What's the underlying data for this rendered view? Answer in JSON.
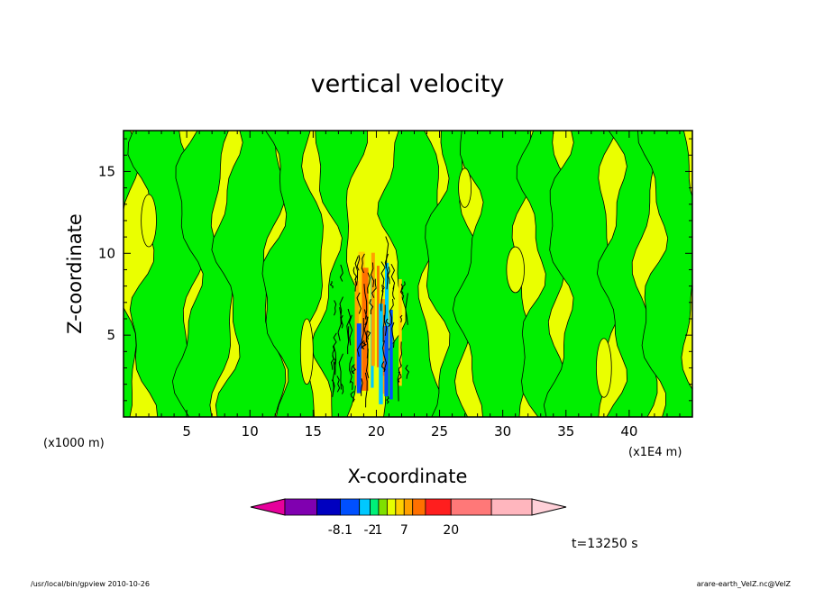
{
  "chart_data": {
    "type": "heatmap",
    "title": "vertical velocity",
    "xlabel": "X-coordinate",
    "ylabel": "Z-coordinate",
    "x_unit": "(x1E4 m)",
    "y_unit": "(x1000 m)",
    "xlim": [
      0,
      45
    ],
    "ylim": [
      0,
      17.5
    ],
    "x_ticks": [
      5,
      10,
      15,
      20,
      25,
      30,
      35,
      40
    ],
    "y_ticks": [
      5,
      10,
      15
    ],
    "time_label": "t=13250 s",
    "colorbar": {
      "colors": [
        "#e6009b",
        "#8000b0",
        "#0000c0",
        "#0050ff",
        "#00c8ff",
        "#00f078",
        "#7fe000",
        "#e6ff00",
        "#ffd000",
        "#ffa000",
        "#ff7000",
        "#ff1e1e",
        "#ff7878",
        "#ffb6be",
        "#ffd0d8"
      ],
      "tick_labels": [
        {
          "label": "-8.1",
          "index": 2
        },
        {
          "label": "-2",
          "index": 4
        },
        {
          "label": "1",
          "index": 5
        },
        {
          "label": "7",
          "index": 8
        },
        {
          "label": "20",
          "index": 11
        }
      ]
    },
    "fields": {
      "negative_color": "#00ef00",
      "positive_color": "#eaff00"
    }
  },
  "footer": {
    "left": "/usr/local/bin/gpview   2010-10-26",
    "right": "arare-earth_VelZ.nc@VelZ"
  }
}
